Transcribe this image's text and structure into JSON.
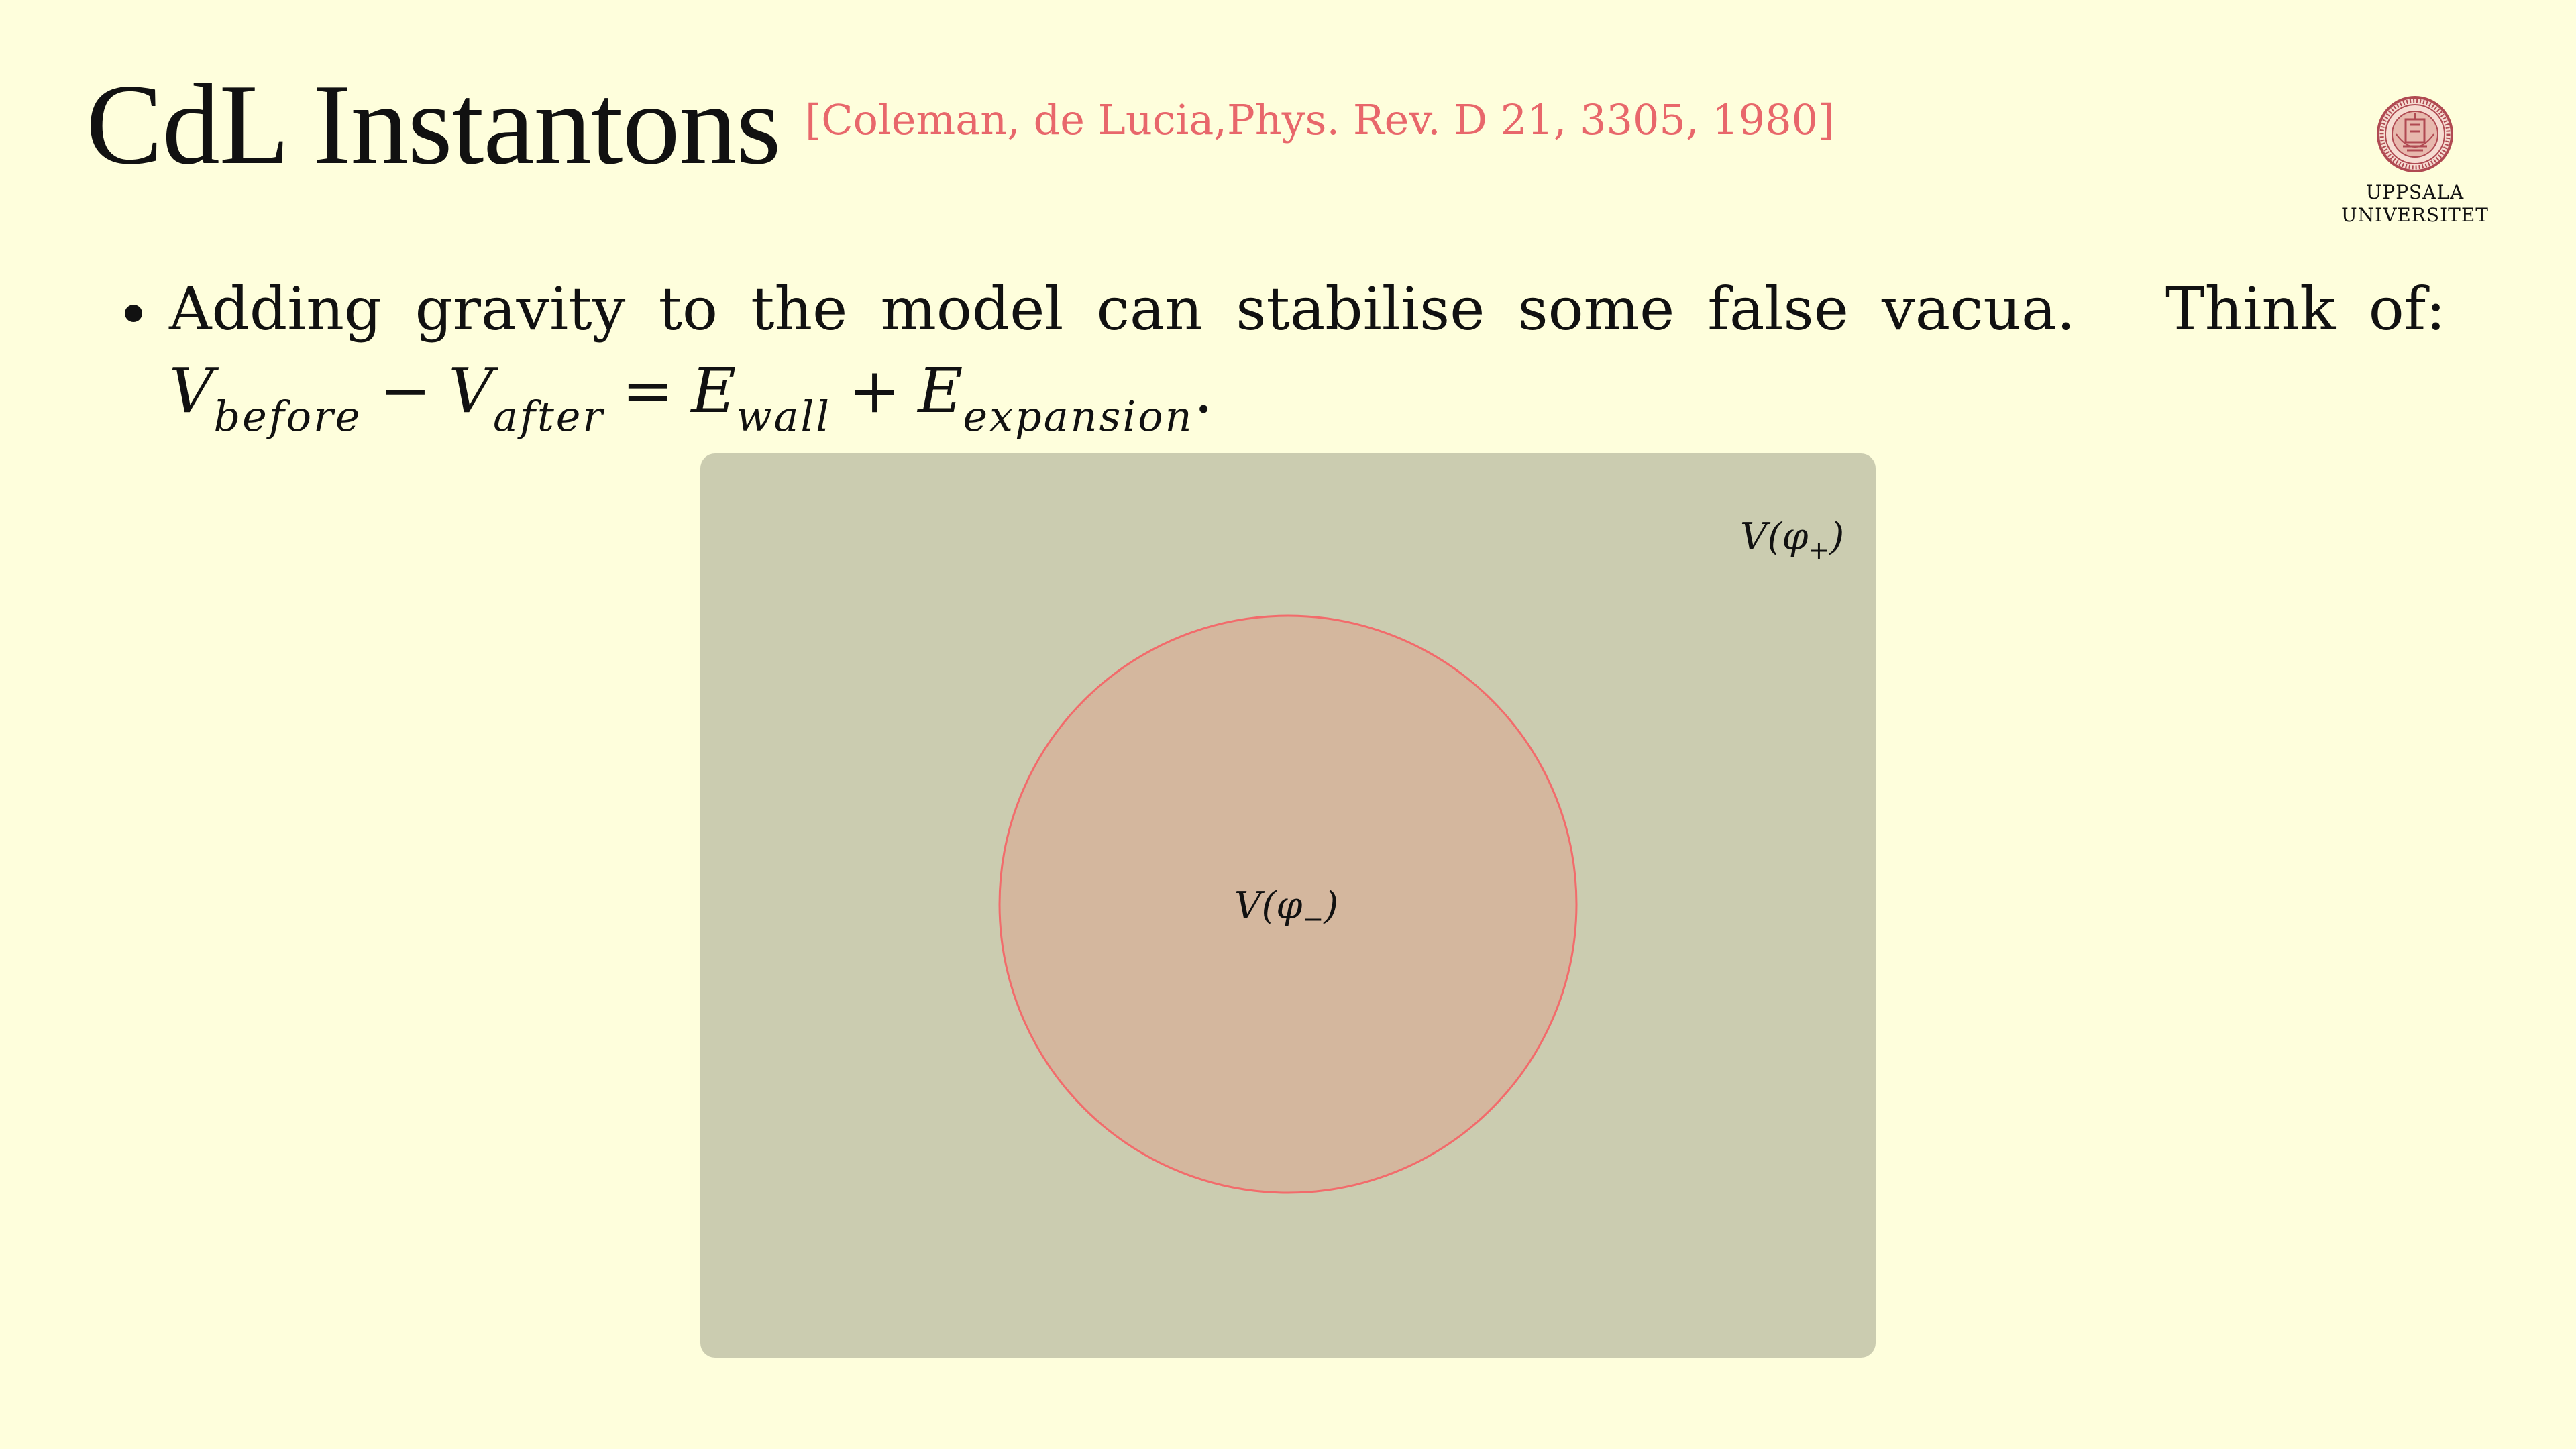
{
  "slide": {
    "title": "CdL Instantons",
    "citation": "[Coleman, de Lucia,Phys. Rev. D 21, 3305, 1980]"
  },
  "logo": {
    "line1": "UPPSALA",
    "line2": "UNIVERSITET"
  },
  "bullet": {
    "words_before_gap": [
      "Adding",
      "gravity",
      "to",
      "the",
      "model",
      "can",
      "stabilise",
      "some",
      "false",
      "vacua."
    ],
    "words_after_gap": [
      "Think",
      "of:"
    ],
    "equation": {
      "v1": "V",
      "sub1": "before",
      "minus": "−",
      "v2": "V",
      "sub2": "after",
      "equals": "=",
      "e1": "E",
      "sub3": "wall",
      "plus": "+",
      "e2": "E",
      "sub4": "expansion",
      "end": "."
    }
  },
  "figure": {
    "outer_label": "V(φ+)",
    "outer_label_base": "V(φ",
    "outer_label_sub": "+",
    "outer_label_close": ")",
    "inner_label": "V(φ−)",
    "inner_label_base": "V(φ",
    "inner_label_sub": "−",
    "inner_label_close": ")",
    "colors": {
      "outer_fill": "#cbccb0",
      "bubble_fill": "#d4b79e",
      "bubble_stroke": "#f26b6b"
    }
  },
  "colors": {
    "background": "#fefedc",
    "citation": "#e8676b",
    "logo": "#b04a52"
  }
}
